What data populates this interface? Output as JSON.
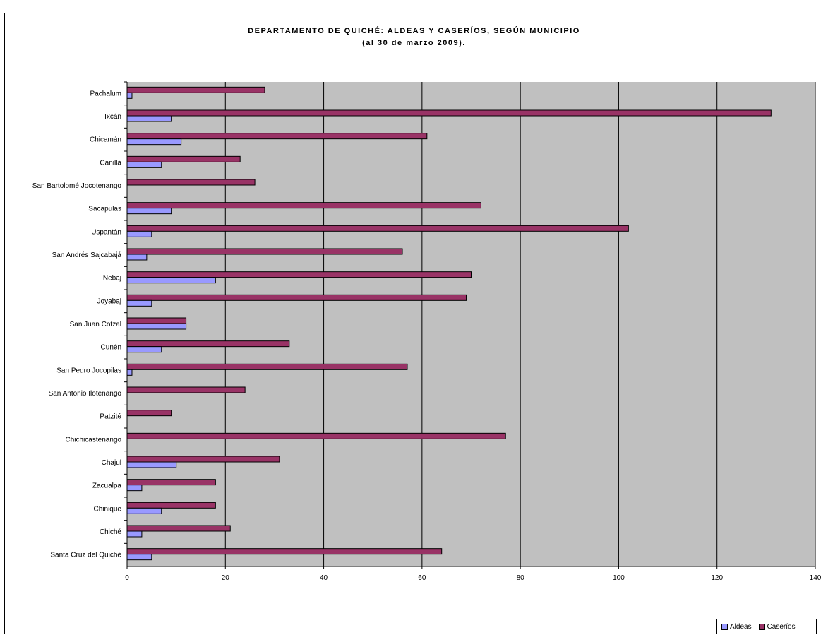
{
  "chart_data": {
    "type": "bar",
    "orientation": "horizontal",
    "title": "DEPARTAMENTO DE QUICHÉ: ALDEAS Y CASERÍOS, SEGÚN MUNICIPIO",
    "subtitle": "(al 30 de marzo 2009).",
    "categories": [
      "Pachalum",
      "Ixcán",
      "Chicamán",
      "Canillá",
      "San Bartolomé Jocotenango",
      "Sacapulas",
      "Uspantán",
      "San Andrés Sajcabajá",
      "Nebaj",
      "Joyabaj",
      "San Juan Cotzal",
      "Cunén",
      "San Pedro Jocopilas",
      "San Antonio Ilotenango",
      "Patzité",
      "Chichicastenango",
      "Chajul",
      "Zacualpa",
      "Chinique",
      "Chiché",
      "Santa Cruz del Quiché"
    ],
    "series": [
      {
        "name": "Aldeas",
        "color": "#9999ff",
        "values": [
          1,
          9,
          11,
          7,
          0,
          9,
          5,
          4,
          18,
          5,
          12,
          7,
          1,
          0,
          0,
          0,
          10,
          3,
          7,
          3,
          5
        ]
      },
      {
        "name": "Caseríos",
        "color": "#993366",
        "values": [
          28,
          131,
          61,
          23,
          26,
          72,
          102,
          56,
          70,
          69,
          12,
          33,
          57,
          24,
          9,
          77,
          31,
          18,
          18,
          21,
          64
        ]
      }
    ],
    "xlim": [
      0,
      140
    ],
    "xticks": [
      0,
      20,
      40,
      60,
      80,
      100,
      120,
      140
    ],
    "grid": true,
    "plot_background": "#c0c0c0",
    "legend": "bottom-right"
  }
}
